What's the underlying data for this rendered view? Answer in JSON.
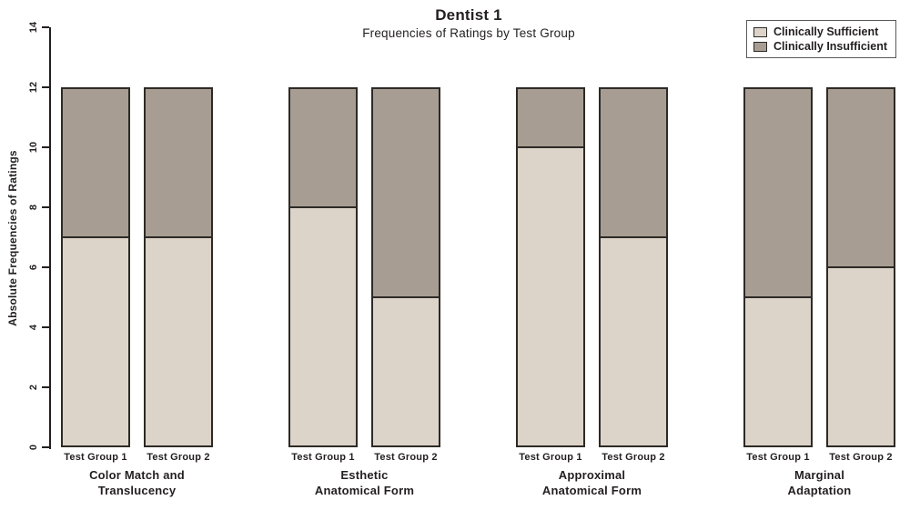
{
  "header": {
    "title": "Dentist 1",
    "subtitle": "Frequencies of Ratings by Test Group"
  },
  "legend": {
    "items": [
      {
        "label": "Clinically Sufficient",
        "color": "#dcd3c9"
      },
      {
        "label": "Clinically Insufficient",
        "color": "#a79d92"
      }
    ]
  },
  "chart_data": {
    "type": "bar",
    "stacked": true,
    "title": "Dentist 1",
    "subtitle": "Frequencies of Ratings by Test Group",
    "xlabel": "",
    "ylabel": "Absolute Frequencies of Ratings",
    "ylim": [
      0,
      14
    ],
    "yticks": [
      0,
      2,
      4,
      6,
      8,
      10,
      12,
      14
    ],
    "grid": false,
    "legend_position": "top-right",
    "bar_total": 12,
    "categories": [
      "Color Match and Translucency",
      "Esthetic Anatomical Form",
      "Approximal Anatomical Form",
      "Marginal Adaptation"
    ],
    "category_label_lines": [
      [
        "Color Match and",
        "Translucency"
      ],
      [
        "Esthetic",
        "Anatomical Form"
      ],
      [
        "Approximal",
        "Anatomical Form"
      ],
      [
        "Marginal",
        "Adaptation"
      ]
    ],
    "bar_labels": [
      "Test Group 1",
      "Test Group 2"
    ],
    "series": [
      {
        "name": "Clinically Sufficient",
        "color": "#dcd3c9",
        "values_by_bar": [
          [
            7,
            7
          ],
          [
            8,
            5
          ],
          [
            10,
            7
          ],
          [
            5,
            6
          ]
        ]
      },
      {
        "name": "Clinically Insufficient",
        "color": "#a79d92",
        "values_by_bar": [
          [
            5,
            5
          ],
          [
            4,
            7
          ],
          [
            2,
            5
          ],
          [
            7,
            6
          ]
        ]
      }
    ]
  }
}
